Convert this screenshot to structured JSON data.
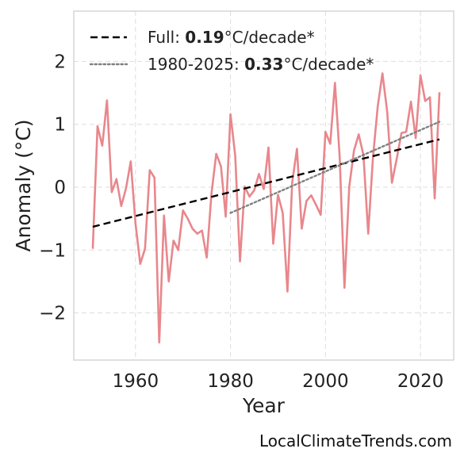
{
  "chart_data": {
    "type": "line",
    "xlabel": "Year",
    "ylabel": "Anomaly (°C)",
    "xlim": [
      1947,
      2027
    ],
    "ylim": [
      -2.75,
      2.8
    ],
    "xticks": [
      1960,
      1980,
      2000,
      2020
    ],
    "xtick_labels": [
      "1960",
      "1980",
      "2000",
      "2020"
    ],
    "yticks": [
      -2,
      -1,
      0,
      1,
      2
    ],
    "ytick_labels": [
      "−2",
      "−1",
      "0",
      "1",
      "2"
    ],
    "grid": true,
    "legend_position": "top-left",
    "series": [
      {
        "style": "solid",
        "color": "#e8878c",
        "x": [
          1951,
          1952,
          1953,
          1954,
          1955,
          1956,
          1957,
          1958,
          1959,
          1960,
          1961,
          1962,
          1963,
          1964,
          1965,
          1966,
          1967,
          1968,
          1969,
          1970,
          1971,
          1972,
          1973,
          1974,
          1975,
          1976,
          1977,
          1978,
          1979,
          1980,
          1981,
          1982,
          1983,
          1984,
          1985,
          1986,
          1987,
          1988,
          1989,
          1990,
          1991,
          1992,
          1993,
          1994,
          1995,
          1996,
          1997,
          1998,
          1999,
          2000,
          2001,
          2002,
          2003,
          2004,
          2005,
          2006,
          2007,
          2008,
          2009,
          2010,
          2011,
          2012,
          2013,
          2014,
          2015,
          2016,
          2017,
          2018,
          2019,
          2020,
          2021,
          2022,
          2023,
          2024
        ],
        "y": [
          -0.98,
          0.97,
          0.66,
          1.38,
          -0.08,
          0.13,
          -0.3,
          -0.02,
          0.41,
          -0.58,
          -1.22,
          -0.98,
          0.27,
          0.15,
          -2.47,
          -0.45,
          -1.5,
          -0.85,
          -1.0,
          -0.37,
          -0.5,
          -0.66,
          -0.74,
          -0.69,
          -1.12,
          -0.1,
          0.53,
          0.33,
          -0.47,
          1.16,
          0.5,
          -1.18,
          0.01,
          -0.15,
          -0.05,
          0.21,
          -0.03,
          0.63,
          -0.9,
          -0.12,
          -0.41,
          -1.66,
          0.08,
          0.61,
          -0.66,
          -0.22,
          -0.13,
          -0.28,
          -0.44,
          0.88,
          0.69,
          1.66,
          0.47,
          -1.6,
          0.0,
          0.58,
          0.84,
          0.51,
          -0.74,
          0.47,
          1.28,
          1.81,
          1.2,
          0.07,
          0.45,
          0.86,
          0.88,
          1.36,
          0.78,
          1.78,
          1.37,
          1.43,
          -0.18,
          1.51
        ]
      },
      {
        "name": "Full",
        "style": "dashed",
        "color": "#000000",
        "x": [
          1951,
          2024
        ],
        "y": [
          -0.63,
          0.76
        ]
      },
      {
        "name": "1980-2025",
        "style": "dotted",
        "color": "#808080",
        "x": [
          1980,
          2024
        ],
        "y": [
          -0.41,
          1.04
        ]
      }
    ],
    "legend": [
      {
        "label": "Full: ",
        "value": "0.19",
        "unit": "°C/decade*",
        "style": "dashed",
        "color": "#000000"
      },
      {
        "label": "1980-2025: ",
        "value": "0.33",
        "unit": "°C/decade*",
        "style": "dotted",
        "color": "#808080"
      }
    ]
  },
  "watermark": "LocalClimateTrends.com"
}
